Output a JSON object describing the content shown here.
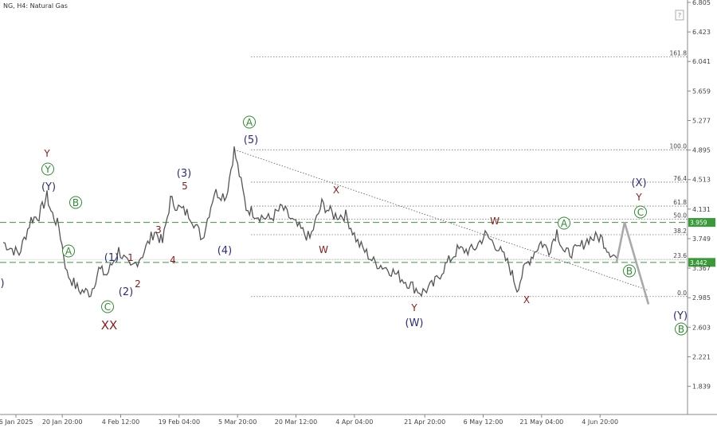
{
  "title": "NG, H4:  Natural Gas",
  "chart_data": {
    "type": "line",
    "symbol": "NG",
    "timeframe": "H4",
    "instrument": "Natural Gas",
    "ylim": [
      1.62,
      6.805
    ],
    "y_ticks": [
      "6.805",
      "6.423",
      "6.041",
      "5.659",
      "5.277",
      "4.895",
      "4.513",
      "4.131",
      "3.749",
      "3.367",
      "2.985",
      "2.603",
      "2.221",
      "1.839"
    ],
    "x_ticks": [
      "6 Jan 2025",
      "20 Jan 20:00",
      "4 Feb 12:00",
      "19 Feb 04:00",
      "5 Mar 20:00",
      "20 Mar 12:00",
      "4 Apr 04:00",
      "21 Apr 20:00",
      "6 May 12:00",
      "21 May 04:00",
      "4 Jun 20:00"
    ],
    "price_path": [
      [
        "6 Jan 2025",
        3.7
      ],
      [
        "10 Jan 2025",
        3.55
      ],
      [
        "13 Jan 2025",
        4.0
      ],
      [
        "15 Jan 2025",
        4.05
      ],
      [
        "17 Jan 2025",
        4.3
      ],
      [
        "18 Jan 2025",
        4.1
      ],
      [
        "20 Jan 2025",
        3.9
      ],
      [
        "22 Jan 2025",
        3.3
      ],
      [
        "25 Jan 2025",
        3.08
      ],
      [
        "28 Jan 2025",
        3.05
      ],
      [
        "30 Jan 2025",
        3.35
      ],
      [
        "1 Feb 2025",
        3.28
      ],
      [
        "4 Feb 2025",
        3.6
      ],
      [
        "7 Feb 2025",
        3.35
      ],
      [
        "10 Feb 2025",
        3.55
      ],
      [
        "13 Feb 2025",
        3.85
      ],
      [
        "15 Feb 2025",
        3.7
      ],
      [
        "17 Feb 2025",
        4.25
      ],
      [
        "19 Feb 2025",
        4.15
      ],
      [
        "22 Feb 2025",
        4.05
      ],
      [
        "25 Feb 2025",
        3.75
      ],
      [
        "28 Feb 2025",
        4.35
      ],
      [
        "3 Mar 2025",
        4.3
      ],
      [
        "5 Mar 2025",
        4.9
      ],
      [
        "8 Mar 2025",
        4.15
      ],
      [
        "11 Mar 2025",
        4.05
      ],
      [
        "14 Mar 2025",
        4.0
      ],
      [
        "17 Mar 2025",
        4.15
      ],
      [
        "20 Mar 2025",
        3.95
      ],
      [
        "24 Mar 2025",
        3.75
      ],
      [
        "27 Mar 2025",
        4.2
      ],
      [
        "30 Mar 2025",
        4.05
      ],
      [
        "2 Apr 2025",
        4.05
      ],
      [
        "5 Apr 2025",
        3.7
      ],
      [
        "9 Apr 2025",
        3.45
      ],
      [
        "13 Apr 2025",
        3.35
      ],
      [
        "17 Apr 2025",
        3.2
      ],
      [
        "21 Apr 2025",
        3.05
      ],
      [
        "24 Apr 2025",
        3.15
      ],
      [
        "27 Apr 2025",
        3.4
      ],
      [
        "30 Apr 2025",
        3.6
      ],
      [
        "4 May 2025",
        3.6
      ],
      [
        "7 May 2025",
        3.8
      ],
      [
        "10 May 2025",
        3.65
      ],
      [
        "13 May 2025",
        3.4
      ],
      [
        "15 May 2025",
        3.1
      ],
      [
        "17 May 2025",
        3.38
      ],
      [
        "19 May 2025",
        3.55
      ],
      [
        "21 May 2025",
        3.7
      ],
      [
        "23 May 2025",
        3.6
      ],
      [
        "25 May 2025",
        3.85
      ],
      [
        "27 May 2025",
        3.55
      ],
      [
        "30 May 2025",
        3.6
      ],
      [
        "2 Jun 2025",
        3.75
      ],
      [
        "5 Jun 2025",
        3.77
      ],
      [
        "7 Jun 2025",
        3.6
      ],
      [
        "9 Jun 2025",
        3.5
      ]
    ],
    "projection": [
      [
        "9 Jun 2025",
        3.45
      ],
      [
        "11 Jun 2025",
        3.959
      ],
      [
        "17 Jun 2025",
        2.9
      ]
    ],
    "fibonacci": {
      "levels": [
        {
          "label": "161.8",
          "value": 6.1
        },
        {
          "label": "100.0",
          "value": 4.898
        },
        {
          "label": "76.4",
          "value": 4.48
        },
        {
          "label": "61.8",
          "value": 4.17
        },
        {
          "label": "50.0",
          "value": 4.0
        },
        {
          "label": "38.2",
          "value": 3.8
        },
        {
          "label": "23.6",
          "value": 3.48
        },
        {
          "label": "0.0",
          "value": 3.0
        }
      ]
    },
    "horizontal_levels": [
      {
        "label": "3.959",
        "value": 3.959,
        "color": "#3a9a3a"
      },
      {
        "label": "3.442",
        "value": 3.442,
        "color": "#3a9a3a"
      }
    ],
    "trendline": [
      [
        "5 Mar 2025",
        4.9
      ],
      [
        "17 Jun 2025",
        3.08
      ]
    ],
    "wave_labels": [
      {
        "text": "Y",
        "color": "red"
      },
      {
        "text": "Y",
        "color": "green",
        "circled": true
      },
      {
        "text": "(Y)",
        "color": "navy"
      },
      {
        "text": "B",
        "color": "green",
        "circled": true
      },
      {
        "text": "A",
        "color": "green",
        "circled": true
      },
      {
        "text": "C",
        "color": "green",
        "circled": true
      },
      {
        "text": "XX",
        "color": "red"
      },
      {
        "text": "(1)",
        "color": "navy"
      },
      {
        "text": "(2)",
        "color": "navy"
      },
      {
        "text": "1",
        "color": "red"
      },
      {
        "text": "2",
        "color": "red"
      },
      {
        "text": "3",
        "color": "red"
      },
      {
        "text": "4",
        "color": "red"
      },
      {
        "text": "(3)",
        "color": "navy"
      },
      {
        "text": "5",
        "color": "red"
      },
      {
        "text": "(4)",
        "color": "navy"
      },
      {
        "text": "A",
        "color": "green",
        "circled": true
      },
      {
        "text": "(5)",
        "color": "navy"
      },
      {
        "text": "X",
        "color": "red"
      },
      {
        "text": "W",
        "color": "red"
      },
      {
        "text": "Y",
        "color": "red"
      },
      {
        "text": "(W)",
        "color": "navy"
      },
      {
        "text": "W",
        "color": "red"
      },
      {
        "text": "X",
        "color": "red"
      },
      {
        "text": "A",
        "color": "green",
        "circled": true
      },
      {
        "text": "B",
        "color": "green",
        "circled": true
      },
      {
        "text": "(X)",
        "color": "navy"
      },
      {
        "text": "Y",
        "color": "red"
      },
      {
        "text": "C",
        "color": "green",
        "circled": true
      },
      {
        "text": "(Y)",
        "color": "navy"
      },
      {
        "text": "B",
        "color": "green",
        "circled": true
      },
      {
        "text": ")",
        "color": "navy"
      }
    ],
    "grid": false,
    "colors": {
      "price": "#555555",
      "projection": "#a9a9a9",
      "level": "#3a9a3a",
      "navy": "#2b2c7c",
      "red": "#8b1a1a",
      "green": "#2e8b2e"
    }
  },
  "icons": {
    "corner_icon": "info-icon"
  }
}
